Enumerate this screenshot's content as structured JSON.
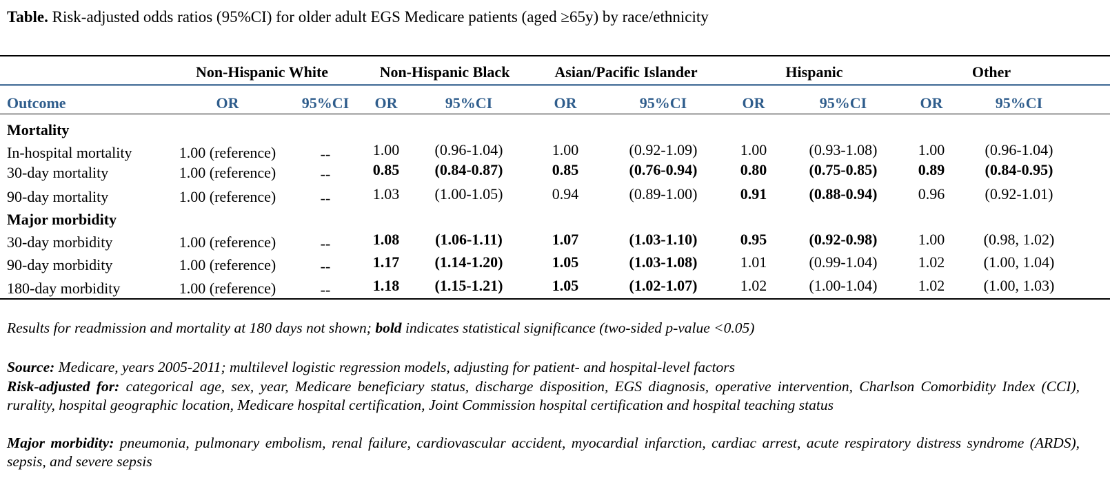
{
  "title": {
    "label": "Table.",
    "text": "Risk-adjusted odds ratios (95%CI) for older adult EGS Medicare patients (aged ≥65y) by race/ethnicity"
  },
  "table": {
    "groups": [
      "Non-Hispanic White",
      "Non-Hispanic Black",
      "Asian/Pacific Islander",
      "Hispanic",
      "Other"
    ],
    "columns": [
      "Outcome",
      "OR",
      "95%CI",
      "OR",
      "95%CI",
      "OR",
      "95%CI",
      "OR",
      "95%CI",
      "OR",
      "95%CI"
    ],
    "sections": [
      {
        "name": "Mortality",
        "rows": [
          {
            "outcome": "In-hospital mortality",
            "white_or": "1.00 (reference)",
            "white_ci": "--",
            "cells": [
              [
                "1.00",
                "(0.96-1.04)",
                false
              ],
              [
                "1.00",
                "(0.92-1.09)",
                false
              ],
              [
                "1.00",
                "(0.93-1.08)",
                false
              ],
              [
                "1.00",
                "(0.96-1.04)",
                false
              ]
            ]
          },
          {
            "outcome": "30-day mortality",
            "white_or": "1.00 (reference)",
            "white_ci": "--",
            "cells": [
              [
                "0.85",
                "(0.84-0.87)",
                true
              ],
              [
                "0.85",
                "(0.76-0.94)",
                true
              ],
              [
                "0.80",
                "(0.75-0.85)",
                true
              ],
              [
                "0.89",
                "(0.84-0.95)",
                true
              ]
            ]
          },
          {
            "outcome": "90-day mortality",
            "white_or": "1.00 (reference)",
            "white_ci": "--",
            "cells": [
              [
                "1.03",
                "(1.00-1.05)",
                false
              ],
              [
                "0.94",
                "(0.89-1.00)",
                false
              ],
              [
                "0.91",
                "(0.88-0.94)",
                true
              ],
              [
                "0.96",
                "(0.92-1.01)",
                false
              ]
            ]
          }
        ]
      },
      {
        "name": "Major morbidity",
        "rows": [
          {
            "outcome": "30-day morbidity",
            "white_or": "1.00 (reference)",
            "white_ci": "--",
            "cells": [
              [
                "1.08",
                "(1.06-1.11)",
                true
              ],
              [
                "1.07",
                "(1.03-1.10)",
                true
              ],
              [
                "0.95",
                "(0.92-0.98)",
                true
              ],
              [
                "1.00",
                "(0.98, 1.02)",
                false
              ]
            ]
          },
          {
            "outcome": "90-day morbidity",
            "white_or": "1.00 (reference)",
            "white_ci": "--",
            "cells": [
              [
                "1.17",
                "(1.14-1.20)",
                true
              ],
              [
                "1.05",
                "(1.03-1.08)",
                true
              ],
              [
                "1.01",
                "(0.99-1.04)",
                false
              ],
              [
                "1.02",
                "(1.00, 1.04)",
                false
              ]
            ]
          },
          {
            "outcome": "180-day morbidity",
            "white_or": "1.00 (reference)",
            "white_ci": "--",
            "cells": [
              [
                "1.18",
                "(1.15-1.21)",
                true
              ],
              [
                "1.05",
                "(1.02-1.07)",
                true
              ],
              [
                "1.02",
                "(1.00-1.04)",
                false
              ],
              [
                "1.02",
                "(1.00, 1.03)",
                false
              ]
            ]
          }
        ]
      }
    ]
  },
  "notes": {
    "results_pre": "Results for readmission and mortality at 180 days not shown; ",
    "results_bold": "bold",
    "results_post": " indicates statistical significance (two-sided p-value <0.05)",
    "source_label": "Source:",
    "source_text": " Medicare, years 2005-2011; multilevel logistic regression models, adjusting for patient- and hospital-level factors",
    "risk_label": "Risk-adjusted for:",
    "risk_text": " categorical age, sex, year, Medicare beneficiary status, discharge disposition, EGS diagnosis, operative intervention, Charlson Comorbidity Index (CCI), rurality, hospital geographic location, Medicare hospital certification, Joint Commission hospital certification and hospital teaching status",
    "morbidity_label": "Major morbidity:",
    "morbidity_text": " pneumonia, pulmonary embolism, renal failure, cardiovascular accident, myocardial infarction, cardiac arrest, acute respiratory distress syndrome (ARDS), sepsis, and severe sepsis"
  }
}
